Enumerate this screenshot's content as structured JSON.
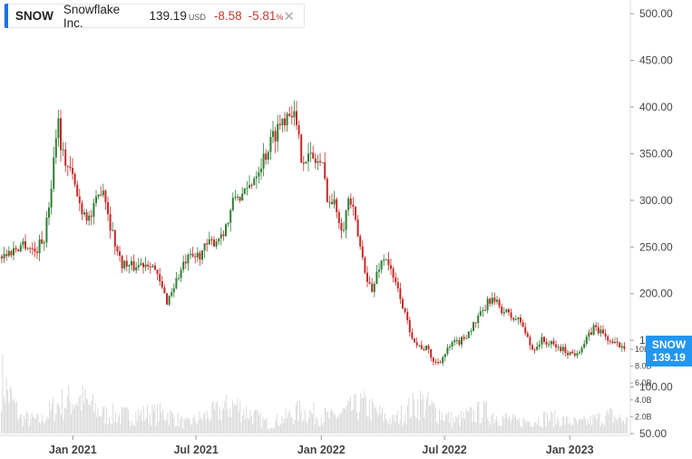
{
  "legend": {
    "symbol": "SNOW",
    "name": "Snowflake Inc.",
    "price": "139.19",
    "currency": "USD",
    "change": "-8.58",
    "change_pct": "-5.81",
    "pct_sign": "%",
    "close_icon": "close-x-icon"
  },
  "badge": {
    "symbol": "SNOW",
    "price": "139.19"
  },
  "colors": {
    "up": "#2e7d32",
    "down": "#c62828",
    "badge": "#2196f3",
    "accent": "#1a73e8",
    "volume": "#d9d9d9"
  },
  "chart_data": {
    "type": "candlestick",
    "x_axis_labels": [
      "Jan 2021",
      "Jul 2021",
      "Jan 2022",
      "Jul 2022",
      "Jan 2023"
    ],
    "x_axis_dates": [
      "2021-01-01",
      "2021-07-01",
      "2022-01-01",
      "2022-07-01",
      "2023-01-01"
    ],
    "x_range": [
      "2020-09-16",
      "2023-03-31"
    ],
    "price_axis": {
      "ticks": [
        50,
        100,
        150,
        200,
        250,
        300,
        350,
        400,
        450,
        500
      ],
      "tick_labels": [
        "50.00",
        "100.00",
        "150.00",
        "200.00",
        "250.00",
        "300.00",
        "350.00",
        "400.00",
        "450.00",
        "500.00"
      ],
      "range": [
        50,
        505
      ]
    },
    "volume_axis": {
      "ticks": [
        2,
        4,
        6,
        8,
        10
      ],
      "tick_labels": [
        "2.0B",
        "4.0B",
        "6.0B",
        "8.0B",
        "10B"
      ],
      "unit": "B",
      "range": [
        0,
        10
      ]
    },
    "price_series": [
      [
        "2020-09-16",
        240
      ],
      [
        "2020-10-01",
        245
      ],
      [
        "2020-10-20",
        255
      ],
      [
        "2020-11-05",
        245
      ],
      [
        "2020-11-20",
        262
      ],
      [
        "2020-12-01",
        330
      ],
      [
        "2020-12-08",
        395
      ],
      [
        "2020-12-15",
        350
      ],
      [
        "2020-12-28",
        330
      ],
      [
        "2021-01-10",
        295
      ],
      [
        "2021-01-25",
        280
      ],
      [
        "2021-02-05",
        300
      ],
      [
        "2021-02-12",
        320
      ],
      [
        "2021-02-25",
        270
      ],
      [
        "2021-03-10",
        235
      ],
      [
        "2021-03-25",
        228
      ],
      [
        "2021-04-10",
        232
      ],
      [
        "2021-04-25",
        235
      ],
      [
        "2021-05-05",
        215
      ],
      [
        "2021-05-18",
        192
      ],
      [
        "2021-06-01",
        215
      ],
      [
        "2021-06-15",
        235
      ],
      [
        "2021-07-01",
        240
      ],
      [
        "2021-07-15",
        250
      ],
      [
        "2021-08-01",
        260
      ],
      [
        "2021-08-15",
        275
      ],
      [
        "2021-08-26",
        305
      ],
      [
        "2021-09-10",
        305
      ],
      [
        "2021-09-25",
        330
      ],
      [
        "2021-10-10",
        350
      ],
      [
        "2021-10-25",
        375
      ],
      [
        "2021-11-10",
        395
      ],
      [
        "2021-11-18",
        400
      ],
      [
        "2021-12-01",
        350
      ],
      [
        "2021-12-15",
        345
      ],
      [
        "2021-12-31",
        340
      ],
      [
        "2022-01-10",
        300
      ],
      [
        "2022-01-20",
        295
      ],
      [
        "2022-01-31",
        270
      ],
      [
        "2022-02-10",
        305
      ],
      [
        "2022-02-20",
        270
      ],
      [
        "2022-03-02",
        235
      ],
      [
        "2022-03-15",
        200
      ],
      [
        "2022-03-25",
        230
      ],
      [
        "2022-04-05",
        240
      ],
      [
        "2022-04-15",
        215
      ],
      [
        "2022-04-25",
        200
      ],
      [
        "2022-05-05",
        170
      ],
      [
        "2022-05-20",
        145
      ],
      [
        "2022-06-05",
        140
      ],
      [
        "2022-06-15",
        125
      ],
      [
        "2022-06-25",
        130
      ],
      [
        "2022-07-10",
        145
      ],
      [
        "2022-07-25",
        150
      ],
      [
        "2022-08-10",
        165
      ],
      [
        "2022-08-25",
        180
      ],
      [
        "2022-09-05",
        195
      ],
      [
        "2022-09-20",
        185
      ],
      [
        "2022-10-05",
        175
      ],
      [
        "2022-10-20",
        170
      ],
      [
        "2022-11-05",
        140
      ],
      [
        "2022-11-20",
        150
      ],
      [
        "2022-12-05",
        145
      ],
      [
        "2022-12-20",
        140
      ],
      [
        "2023-01-05",
        135
      ],
      [
        "2023-01-20",
        145
      ],
      [
        "2023-02-05",
        165
      ],
      [
        "2023-02-20",
        155
      ],
      [
        "2023-03-05",
        145
      ],
      [
        "2023-03-20",
        145
      ],
      [
        "2023-03-31",
        139
      ]
    ],
    "volume_series": [
      [
        "2020-09-16",
        9.0
      ],
      [
        "2020-10-15",
        2.5
      ],
      [
        "2020-11-15",
        2.0
      ],
      [
        "2020-12-08",
        4.5
      ],
      [
        "2021-01-10",
        5.5
      ],
      [
        "2021-02-15",
        3.0
      ],
      [
        "2021-03-15",
        2.8
      ],
      [
        "2021-05-18",
        3.2
      ],
      [
        "2021-06-15",
        1.5
      ],
      [
        "2021-08-26",
        4.5
      ],
      [
        "2021-10-15",
        1.5
      ],
      [
        "2021-12-01",
        3.5
      ],
      [
        "2022-01-15",
        2.5
      ],
      [
        "2022-03-02",
        4.5
      ],
      [
        "2022-04-15",
        2.0
      ],
      [
        "2022-05-25",
        5.0
      ],
      [
        "2022-07-15",
        2.0
      ],
      [
        "2022-08-25",
        3.5
      ],
      [
        "2022-10-15",
        1.8
      ],
      [
        "2022-11-30",
        2.5
      ],
      [
        "2023-01-15",
        1.6
      ],
      [
        "2023-03-01",
        2.8
      ],
      [
        "2023-03-31",
        1.8
      ]
    ]
  }
}
